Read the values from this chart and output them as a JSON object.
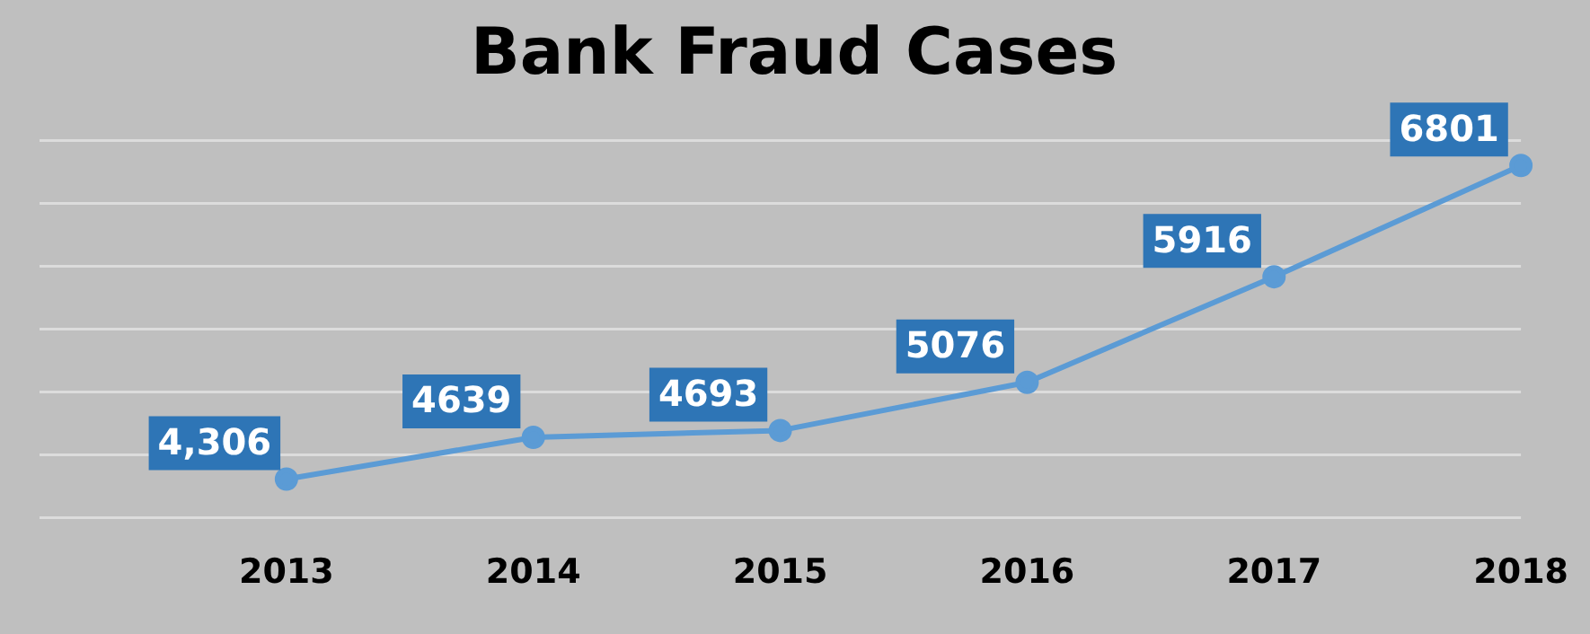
{
  "chart_data": {
    "type": "line",
    "title": "Bank Fraud Cases",
    "categories": [
      null,
      "2013",
      "2014",
      "2015",
      "2016",
      "2017",
      "2018"
    ],
    "series": [
      {
        "color": "#5b9bd5",
        "values": [
          null,
          4306,
          4639,
          4693,
          5076,
          5916,
          6801
        ],
        "value_labels": [
          null,
          "4,306",
          "4639",
          "4693",
          "5076",
          "5916",
          "6801"
        ]
      }
    ],
    "ylim": [
      4000,
      7000
    ],
    "yticks": [
      {
        "value": 4000,
        "label": null
      },
      {
        "value": 4500,
        "label": null
      },
      {
        "value": 5000,
        "label": null
      },
      {
        "value": 5500,
        "label": null
      },
      {
        "value": 6000,
        "label": null
      },
      {
        "value": 6500,
        "label": null
      },
      {
        "value": 7000,
        "label": null
      }
    ],
    "grid": "y",
    "legend": false,
    "tick_labels": "x",
    "marker": "circle",
    "line_style": "solid"
  }
}
